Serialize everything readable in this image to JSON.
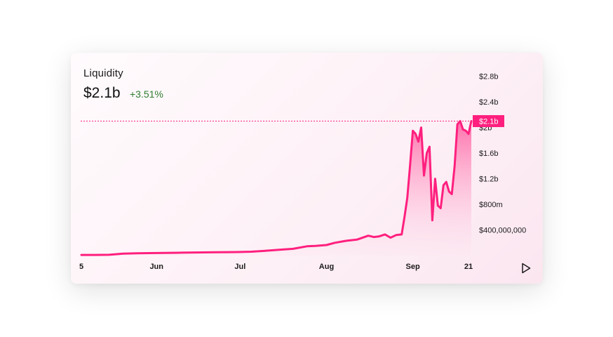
{
  "header": {
    "title": "Liquidity",
    "value": "$2.1b",
    "change": "+3.51%",
    "change_color": "#2f7d2f"
  },
  "colors": {
    "accent": "#ff1f7e",
    "area_top": "#ff6aa8",
    "area_bottom": "#fde2ee",
    "badge_text": "#ffffff"
  },
  "current_marker": {
    "label": "$2.1b",
    "value": 2100000000
  },
  "controls": {
    "play_icon": "play-icon"
  },
  "chart_data": {
    "type": "area",
    "title": "Liquidity",
    "xlabel": "",
    "ylabel": "",
    "x_tick_labels": [
      "5",
      "Jun",
      "Jul",
      "Aug",
      "Sep",
      "21"
    ],
    "x_tick_dates": [
      "2021-05-05",
      "2021-06-01",
      "2021-07-01",
      "2021-08-01",
      "2021-09-01",
      "2021-09-21"
    ],
    "y_tick_labels": [
      "$2.8b",
      "$2.4b",
      "$2b",
      "$1.6b",
      "$1.2b",
      "$800m",
      "$400,000,000"
    ],
    "y_tick_values": [
      2800000000,
      2400000000,
      2000000000,
      1600000000,
      1200000000,
      800000000,
      400000000
    ],
    "ylim": [
      0,
      2950000000
    ],
    "grid": false,
    "series": [
      {
        "x": [
          "2021-05-05",
          "2021-05-10",
          "2021-05-15",
          "2021-05-20",
          "2021-05-25",
          "2021-06-01",
          "2021-06-10",
          "2021-06-20",
          "2021-06-30",
          "2021-07-05",
          "2021-07-10",
          "2021-07-15",
          "2021-07-20",
          "2021-07-25",
          "2021-07-28",
          "2021-08-01",
          "2021-08-04",
          "2021-08-08",
          "2021-08-12",
          "2021-08-16",
          "2021-08-18",
          "2021-08-20",
          "2021-08-22",
          "2021-08-24",
          "2021-08-26",
          "2021-08-28",
          "2021-08-29",
          "2021-08-30",
          "2021-08-31",
          "2021-09-01",
          "2021-09-02",
          "2021-09-03",
          "2021-09-04",
          "2021-09-05",
          "2021-09-06",
          "2021-09-07",
          "2021-09-08",
          "2021-09-09",
          "2021-09-10",
          "2021-09-11",
          "2021-09-12",
          "2021-09-13",
          "2021-09-14",
          "2021-09-15",
          "2021-09-16",
          "2021-09-17",
          "2021-09-18",
          "2021-09-19",
          "2021-09-20",
          "2021-09-21",
          "2021-09-22"
        ],
        "values": [
          10000000,
          10000000,
          12000000,
          30000000,
          35000000,
          40000000,
          45000000,
          50000000,
          55000000,
          60000000,
          75000000,
          90000000,
          105000000,
          145000000,
          150000000,
          165000000,
          200000000,
          230000000,
          250000000,
          310000000,
          290000000,
          300000000,
          330000000,
          280000000,
          320000000,
          330000000,
          600000000,
          900000000,
          1400000000,
          1950000000,
          1900000000,
          1780000000,
          2000000000,
          1250000000,
          1600000000,
          1700000000,
          550000000,
          1200000000,
          780000000,
          740000000,
          1100000000,
          1150000000,
          1000000000,
          960000000,
          1400000000,
          2050000000,
          2100000000,
          1970000000,
          1950000000,
          1900000000,
          2100000000
        ]
      }
    ]
  }
}
